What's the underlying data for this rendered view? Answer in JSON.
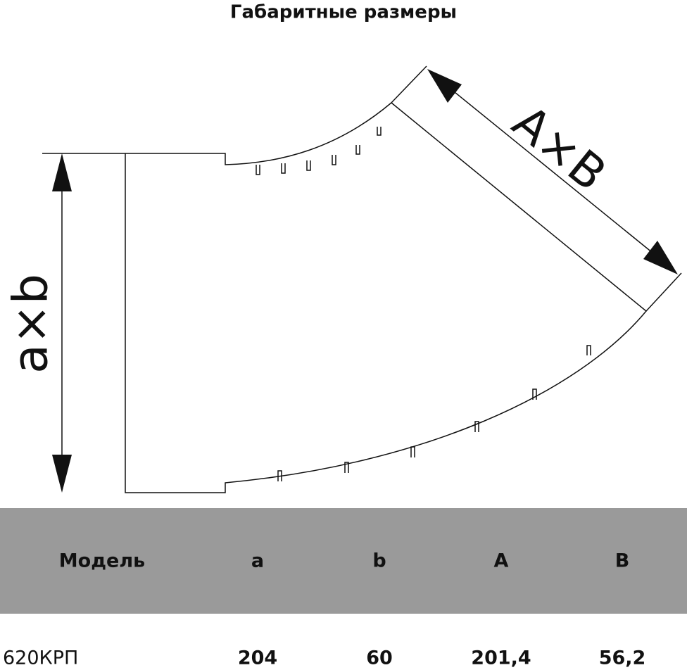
{
  "header": {
    "title": "Габаритные размеры"
  },
  "diagram": {
    "labels": {
      "height": "a×b",
      "end": "A×B"
    }
  },
  "table": {
    "header": [
      "Модель",
      "a",
      "b",
      "A",
      "B"
    ],
    "rows": [
      [
        "620КРП",
        "204",
        "60",
        "201,4",
        "56,2"
      ]
    ]
  }
}
